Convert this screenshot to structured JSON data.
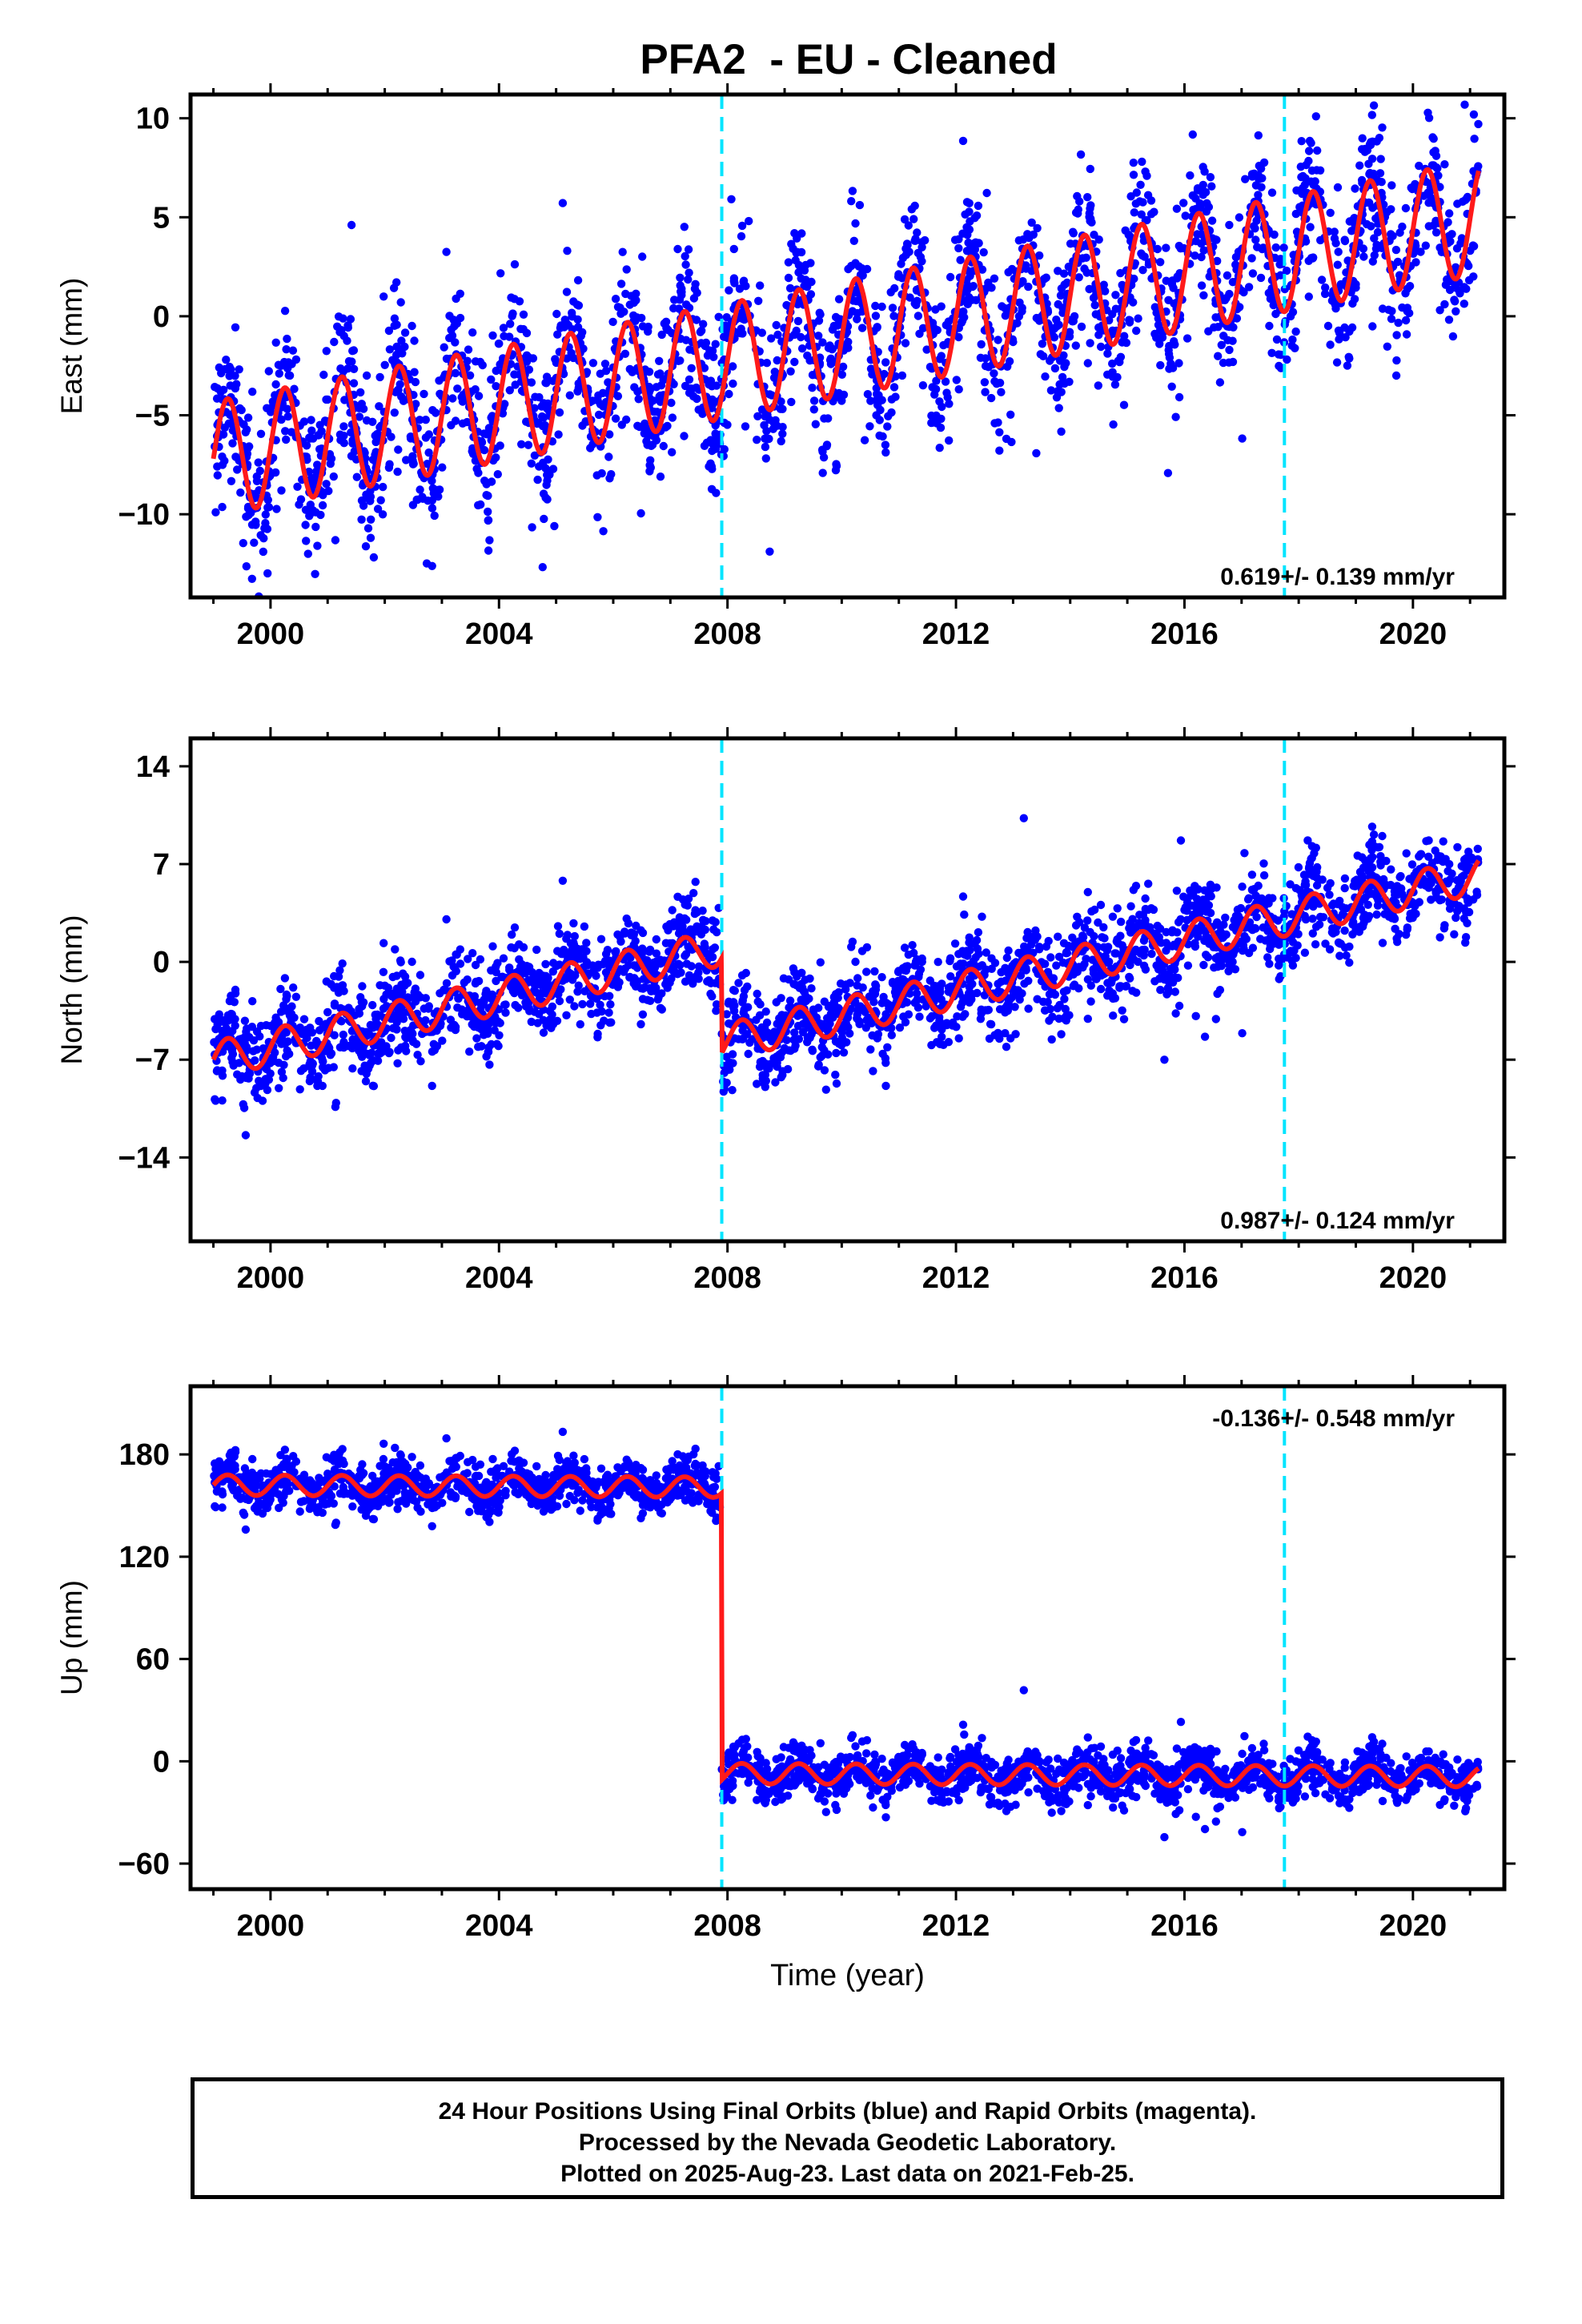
{
  "title": "PFA2  - EU - Cleaned",
  "colors": {
    "final_orbits": "#0000ff",
    "model": "#ff1a1a",
    "offset_line": "#00e5ff",
    "axes": "#000000"
  },
  "footer": {
    "line1": "24 Hour Positions Using Final Orbits (blue) and Rapid Orbits (magenta).",
    "line2": "Processed by the Nevada Geodetic Laboratory.",
    "line3": "Plotted on 2025-Aug-23. Last data on 2021-Feb-25."
  },
  "chart_data": [
    {
      "type": "scatter",
      "ylabel": "East (mm)",
      "xlabel": "",
      "xlim": [
        1998.6,
        2021.6
      ],
      "ylim": [
        -14.2,
        11.2
      ],
      "xticks": [
        2000,
        2004,
        2008,
        2012,
        2016,
        2020
      ],
      "yticks": [
        -10,
        -5,
        0,
        5,
        10
      ],
      "ytick_labels": [
        "−10",
        "−5",
        "0",
        "5",
        "10"
      ],
      "rate": "0.619+/- 0.139 mm/yr",
      "rate_position": "bottom-right",
      "offset_epochs": [
        2007.9,
        2017.75
      ],
      "data_span": [
        1999.0,
        2021.15
      ],
      "model": {
        "trend_start": -7.2,
        "trend_end": 5.0,
        "seasonal_amplitude": 2.9,
        "period_years": 1.0,
        "steps": [],
        "segments": [
          [
            1999.0,
            2021.15
          ]
        ]
      },
      "noise_sd": 1.9
    },
    {
      "type": "scatter",
      "ylabel": "North (mm)",
      "xlabel": "",
      "xlim": [
        1998.6,
        2021.6
      ],
      "ylim": [
        -20,
        16
      ],
      "xticks": [
        2000,
        2004,
        2008,
        2012,
        2016,
        2020
      ],
      "yticks": [
        -14,
        -7,
        0,
        7,
        14
      ],
      "ytick_labels": [
        "−14",
        "−7",
        "0",
        "7",
        "14"
      ],
      "rate": "0.987+/- 0.124 mm/yr",
      "rate_position": "bottom-right",
      "offset_epochs": [
        2007.9,
        2017.75
      ],
      "data_span": [
        1999.0,
        2021.15
      ],
      "model": {
        "trend_start": -7.0,
        "trend_end": 6.2,
        "seasonal_amplitude": 1.3,
        "period_years": 1.0,
        "steps": [
          {
            "at": 2007.9,
            "size": -6.8
          }
        ],
        "segments": [
          [
            1999.0,
            2021.15
          ]
        ]
      },
      "noise_sd": 1.6
    },
    {
      "type": "scatter",
      "ylabel": "Up (mm)",
      "xlabel": "Time (year)",
      "xlim": [
        1998.6,
        2021.6
      ],
      "ylim": [
        -75,
        220
      ],
      "xticks": [
        2000,
        2004,
        2008,
        2012,
        2016,
        2020
      ],
      "yticks": [
        -60,
        0,
        60,
        120,
        180
      ],
      "ytick_labels": [
        "−60",
        "0",
        "60",
        "120",
        "180"
      ],
      "rate": "-0.136+/- 0.548 mm/yr",
      "rate_position": "top-right",
      "offset_epochs": [
        2007.9,
        2017.75
      ],
      "data_span": [
        1999.0,
        2021.15
      ],
      "model": {
        "trend_start": 162.0,
        "trend_end": -9.0,
        "seasonal_amplitude": 6.0,
        "period_years": 1.0,
        "steps": [
          {
            "at": 2007.9,
            "size": -168.0
          }
        ],
        "segments": [
          [
            1999.0,
            2021.15
          ]
        ]
      },
      "noise_sd": 7.0
    }
  ]
}
